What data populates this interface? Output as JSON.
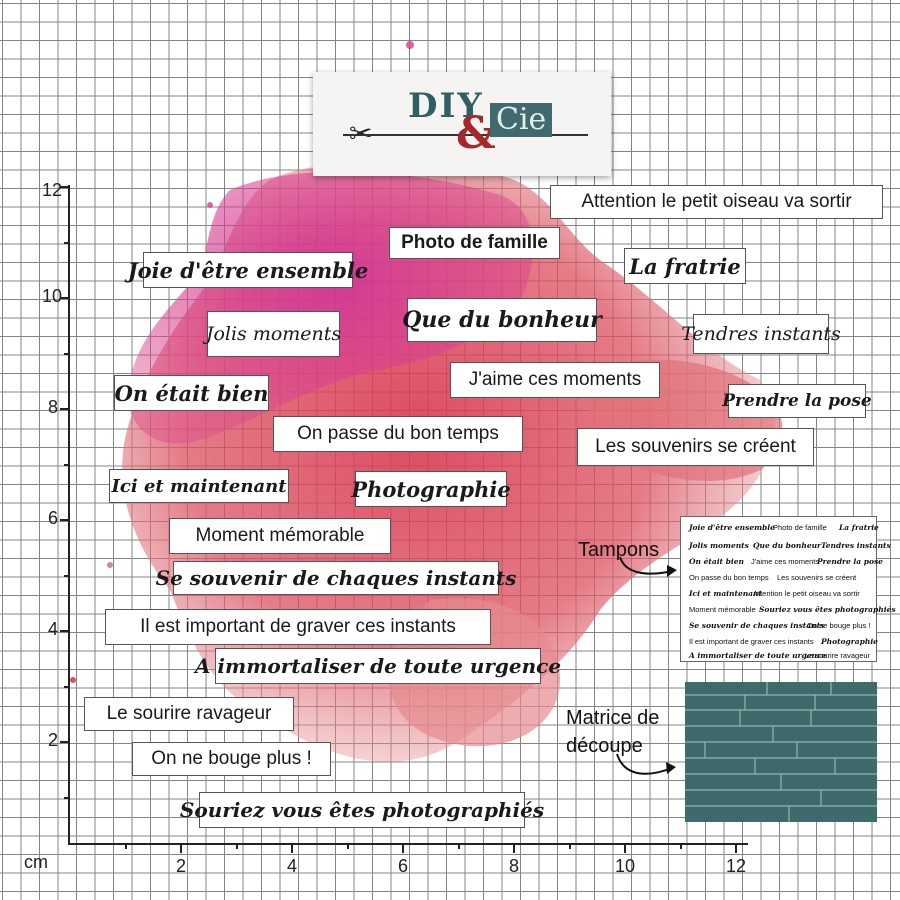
{
  "logo": {
    "diy": "DIY",
    "amp": "&",
    "cie": "Cie"
  },
  "axes": {
    "unit": "cm",
    "y_labels": [
      "12",
      "10",
      "8",
      "6",
      "4",
      "2"
    ],
    "x_labels": [
      "2",
      "4",
      "6",
      "8",
      "10",
      "12"
    ]
  },
  "tags": [
    {
      "text": "Attention le petit oiseau va sortir",
      "style": "plain"
    },
    {
      "text": "Photo de famille",
      "style": "plain"
    },
    {
      "text": "Joie d'être ensemble",
      "style": "deco"
    },
    {
      "text": "La fratrie",
      "style": "deco"
    },
    {
      "text": "Jolis moments",
      "style": "hand"
    },
    {
      "text": "Que du bonheur",
      "style": "deco"
    },
    {
      "text": "Tendres instants",
      "style": "hand"
    },
    {
      "text": "J'aime ces moments",
      "style": "plain"
    },
    {
      "text": "On était bien",
      "style": "deco"
    },
    {
      "text": "Prendre la pose",
      "style": "deco"
    },
    {
      "text": "On passe du bon temps",
      "style": "plain"
    },
    {
      "text": "Les souvenirs se créent",
      "style": "plain"
    },
    {
      "text": "Ici et maintenant",
      "style": "deco"
    },
    {
      "text": "Photographie",
      "style": "deco"
    },
    {
      "text": "Moment mémorable",
      "style": "plain"
    },
    {
      "text": "Se souvenir de chaques instants",
      "style": "deco"
    },
    {
      "text": "Il est important de graver ces instants",
      "style": "plain"
    },
    {
      "text": "A immortaliser de toute urgence",
      "style": "deco"
    },
    {
      "text": "Le sourire ravageur",
      "style": "plain"
    },
    {
      "text": "On ne bouge plus !",
      "style": "plain"
    },
    {
      "text": "Souriez vous êtes photographiés",
      "style": "deco"
    }
  ],
  "labels": {
    "tampons": "Tampons",
    "matrice_line1": "Matrice de",
    "matrice_line2": "découpe"
  },
  "stamp_sheet": [
    {
      "text": "Joie d'être ensemble",
      "style": "d"
    },
    {
      "text": "Photo de famille",
      "style": "p"
    },
    {
      "text": "La fratrie",
      "style": "d"
    },
    {
      "text": "Jolis moments",
      "style": "d"
    },
    {
      "text": "Que du bonheur",
      "style": "d"
    },
    {
      "text": "Tendres instants",
      "style": "d"
    },
    {
      "text": "On était bien",
      "style": "d"
    },
    {
      "text": "J'aime ces moments",
      "style": "p"
    },
    {
      "text": "Prendre la pose",
      "style": "d"
    },
    {
      "text": "On passe du bon temps",
      "style": "p"
    },
    {
      "text": "Les souvenirs se créent",
      "style": "p"
    },
    {
      "text": "Ici et maintenant",
      "style": "d"
    },
    {
      "text": "Attention le petit oiseau va sortir",
      "style": "p"
    },
    {
      "text": "Moment mémorable",
      "style": "p"
    },
    {
      "text": "Souriez vous êtes photographiés",
      "style": "d"
    },
    {
      "text": "Se souvenir de chaques instants",
      "style": "d"
    },
    {
      "text": "On ne bouge plus !",
      "style": "p"
    },
    {
      "text": "Il est important de graver ces instants",
      "style": "p"
    },
    {
      "text": "Photographie",
      "style": "d"
    },
    {
      "text": "A immortaliser de toute urgence",
      "style": "d"
    },
    {
      "text": "Le sourire ravageur",
      "style": "p"
    }
  ],
  "colors": {
    "splash_magenta": "#d9338f",
    "splash_red": "#d94a5a",
    "splash_pink": "#e88a8e",
    "teal": "#3d6b6b",
    "logo_red": "#a8272d"
  }
}
